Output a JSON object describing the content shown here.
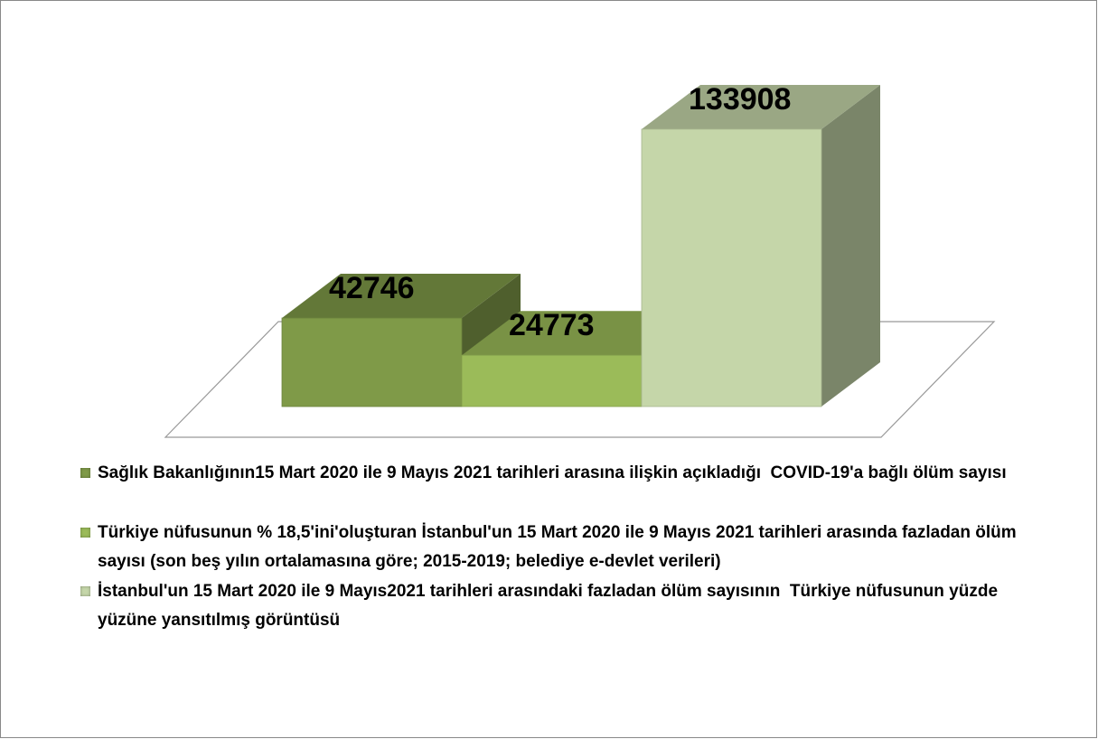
{
  "chart_data": {
    "type": "bar",
    "series": [
      {
        "name": "Sağlık Bakanlığının15 Mart 2020 ile 9 Mayıs 2021 tarihleri arasına ilişkin açıkladığı  COVID-19'a bağlı ölüm sayısı",
        "color": "#7f9a48",
        "values": [
          42746
        ]
      },
      {
        "name": "Türkiye nüfusunun % 18,5'ini'oluşturan İstanbul'un 15 Mart 2020 ile 9 Mayıs 2021 tarihleri arasında fazladan ölüm   sayısı (son beş yılın ortalamasına göre; 2015-2019; belediye e-devlet verileri)",
        "color": "#9bbb59",
        "values": [
          24773
        ]
      },
      {
        "name": "İstanbul'un 15 Mart 2020 ile 9 Mayıs2021 tarihleri arasındaki fazladan ölüm sayısının  Türkiye nüfusunun yüzde yüzüne yansıtılmış görüntüsü",
        "color": "#c5d6a9",
        "values": [
          133908
        ]
      }
    ]
  }
}
